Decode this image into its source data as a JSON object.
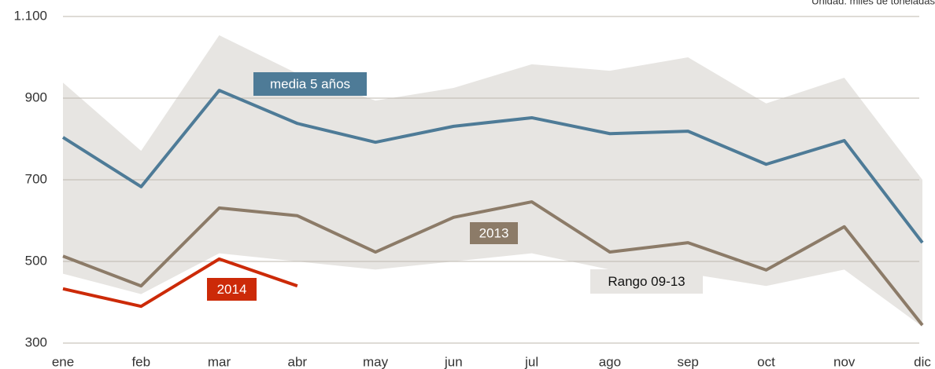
{
  "chart_data": {
    "type": "line",
    "subtitle": "Unidad: miles de toneladas",
    "categories": [
      "ene",
      "feb",
      "mar",
      "abr",
      "may",
      "jun",
      "jul",
      "ago",
      "sep",
      "oct",
      "nov",
      "dic"
    ],
    "band": {
      "name": "Rango 09-13",
      "color": "#e7e5e2",
      "upper": [
        938,
        771,
        1054,
        960,
        894,
        925,
        983,
        967,
        1000,
        887,
        950,
        700
      ],
      "lower": [
        470,
        420,
        520,
        500,
        480,
        500,
        520,
        480,
        470,
        440,
        480,
        340
      ]
    },
    "series": [
      {
        "name": "media 5 años",
        "color": "#4e7b97",
        "values": [
          804,
          683,
          919,
          838,
          792,
          831,
          852,
          813,
          819,
          738,
          796,
          546
        ]
      },
      {
        "name": "2013",
        "color": "#8c7b68",
        "values": [
          513,
          440,
          631,
          612,
          523,
          608,
          646,
          523,
          546,
          479,
          585,
          344
        ]
      },
      {
        "name": "2014",
        "color": "#cc2a08",
        "values": [
          433,
          390,
          506,
          440,
          null,
          null,
          null,
          null,
          null,
          null,
          null,
          null
        ]
      }
    ],
    "ylim": [
      300,
      1100
    ],
    "yticks": [
      300,
      500,
      700,
      900,
      {
        "value": 1100,
        "label": "1.100"
      }
    ],
    "grid": true
  }
}
